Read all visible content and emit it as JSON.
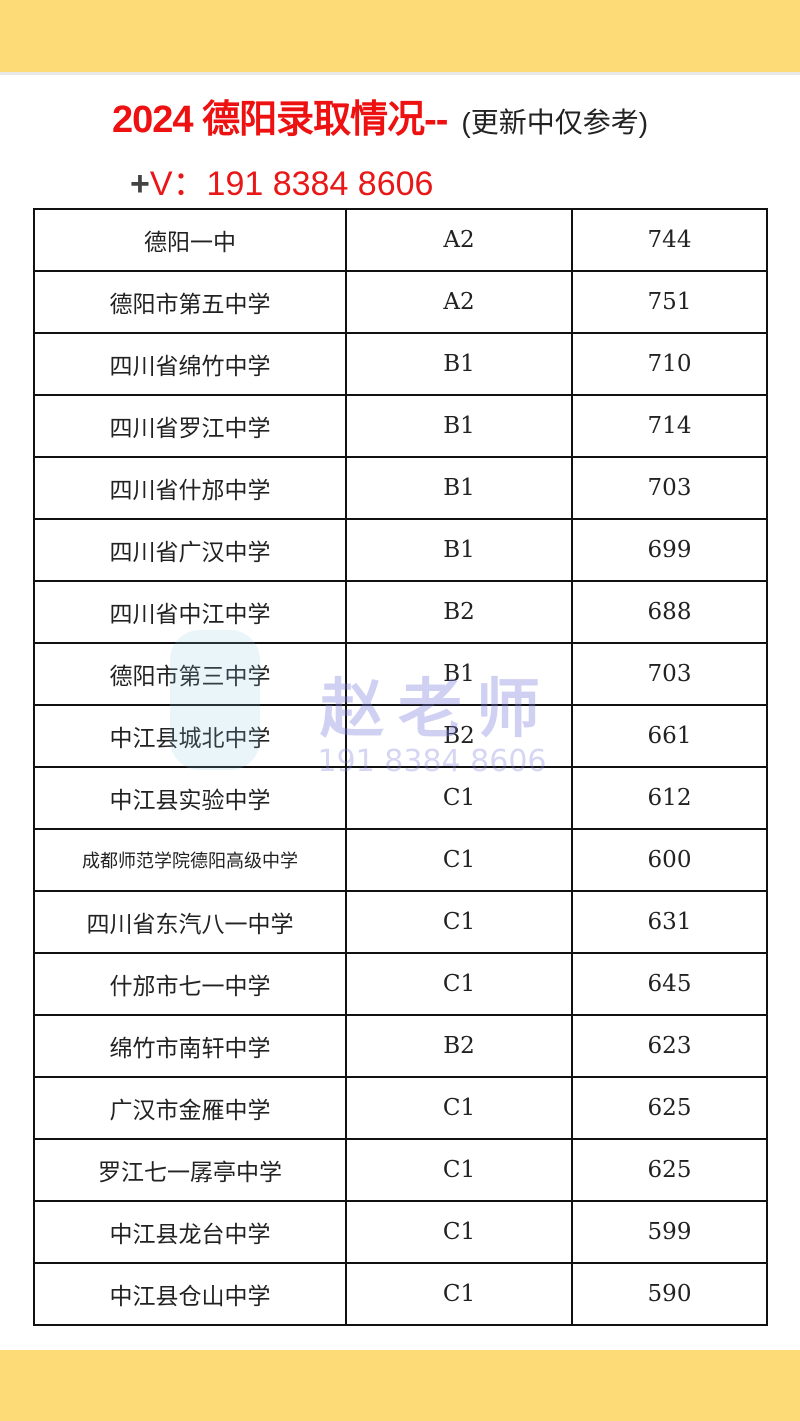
{
  "header": {
    "title": "2024 德阳录取情况--",
    "note": "(更新中仅参考)",
    "contact_prefix": "+",
    "contact": "V：191 8384 8606"
  },
  "watermark": {
    "name": "赵老师",
    "phone": "191 8384 8606"
  },
  "colors": {
    "accent": "#ee1111",
    "banner": "#fddc78"
  },
  "table": {
    "rows": [
      [
        "德阳一中",
        "A2",
        "744"
      ],
      [
        "德阳市第五中学",
        "A2",
        "751"
      ],
      [
        "四川省绵竹中学",
        "B1",
        "710"
      ],
      [
        "四川省罗江中学",
        "B1",
        "714"
      ],
      [
        "四川省什邡中学",
        "B1",
        "703"
      ],
      [
        "四川省广汉中学",
        "B1",
        "699"
      ],
      [
        "四川省中江中学",
        "B2",
        "688"
      ],
      [
        "德阳市第三中学",
        "B1",
        "703"
      ],
      [
        "中江县城北中学",
        "B2",
        "661"
      ],
      [
        "中江县实验中学",
        "C1",
        "612"
      ],
      [
        "成都师范学院德阳高级中学",
        "C1",
        "600"
      ],
      [
        "四川省东汽八一中学",
        "C1",
        "631"
      ],
      [
        "什邡市七一中学",
        "C1",
        "645"
      ],
      [
        "绵竹市南轩中学",
        "B2",
        "623"
      ],
      [
        "广汉市金雁中学",
        "C1",
        "625"
      ],
      [
        "罗江七一孱亭中学",
        "C1",
        "625"
      ],
      [
        "中江县龙台中学",
        "C1",
        "599"
      ],
      [
        "中江县仓山中学",
        "C1",
        "590"
      ]
    ]
  }
}
